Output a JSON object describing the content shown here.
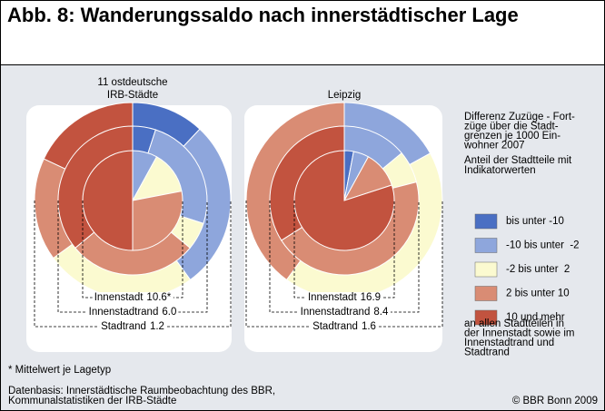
{
  "title": "Abb. 8: Wanderungssaldo nach innerstädtischer Lage",
  "chart_data": [
    {
      "type": "pie",
      "title": "11 ostdeutsche IRB-Städte",
      "series": [
        {
          "name": "Innenstadt",
          "mean": 10.6,
          "mean_label": "10.6*",
          "values": [
            0,
            8,
            14,
            28,
            50
          ]
        },
        {
          "name": "Innenstadtrand",
          "mean": 6.0,
          "mean_label": "6.0",
          "values": [
            5,
            25,
            6,
            28,
            36
          ]
        },
        {
          "name": "Stadtrand",
          "mean": 1.2,
          "mean_label": "1.2",
          "values": [
            12,
            28,
            25,
            17,
            18
          ]
        }
      ]
    },
    {
      "type": "pie",
      "title": "Leipzig",
      "series": [
        {
          "name": "Innenstadt",
          "mean": 16.9,
          "mean_label": "16.9",
          "values": [
            3,
            5,
            0,
            12,
            80
          ]
        },
        {
          "name": "Innenstadtrand",
          "mean": 8.4,
          "mean_label": "8.4",
          "values": [
            0,
            14,
            7,
            45,
            34
          ]
        },
        {
          "name": "Stadtrand",
          "mean": 1.6,
          "mean_label": "1.6",
          "values": [
            0,
            17,
            43,
            40,
            0
          ]
        }
      ]
    }
  ],
  "legend": {
    "title_lines": [
      "Differenz Zuzüge - Fort-",
      "züge über die Stadt-",
      "grenzen je 1000 Ein-",
      "wohner 2007"
    ],
    "subtitle_lines": [
      "Anteil der Stadtteile mit",
      "Indikatorwerten"
    ],
    "categories": [
      "bis unter -10",
      "-10 bis unter  -2",
      "-2 bis unter  2",
      "2 bis unter 10",
      "10 und mehr"
    ],
    "colors": [
      "#4a6fc3",
      "#8ea6dc",
      "#fbfad0",
      "#d98c74",
      "#c2533f"
    ],
    "note_lines": [
      "an allen Stadtteilen in",
      "der Innenstadt sowie im",
      "Innenstadtrand und",
      "Stadtrand"
    ]
  },
  "footnote": "* Mittelwert je Lagetyp",
  "source_lines": [
    "Datenbasis: Innerstädtische Raumbeobachtung des BBR,",
    "Kommunalstatistiken der IRB-Städte"
  ],
  "copyright": "© BBR Bonn 2009"
}
